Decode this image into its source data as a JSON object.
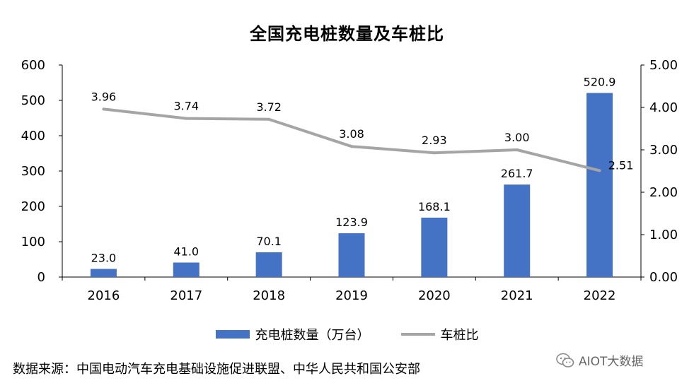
{
  "chart_data": {
    "type": "bar",
    "title": "全国充电桩数量及车桩比",
    "categories": [
      "2016",
      "2017",
      "2018",
      "2019",
      "2020",
      "2021",
      "2022"
    ],
    "series": [
      {
        "name": "充电桩数量（万台）",
        "type": "bar",
        "axis": "left",
        "values": [
          23.0,
          41.0,
          70.1,
          123.9,
          168.1,
          261.7,
          520.9
        ],
        "labels": [
          "23.0",
          "41.0",
          "70.1",
          "123.9",
          "168.1",
          "261.7",
          "520.9"
        ],
        "color": "#4472c4"
      },
      {
        "name": "车桩比",
        "type": "line",
        "axis": "right",
        "values": [
          3.96,
          3.74,
          3.72,
          3.08,
          2.93,
          3.0,
          2.51
        ],
        "labels": [
          "3.96",
          "3.74",
          "3.72",
          "3.08",
          "2.93",
          "3.00",
          "2.51"
        ],
        "color": "#a5a5a5"
      }
    ],
    "ylim": [
      0,
      600
    ],
    "yticks": [
      "0",
      "100",
      "200",
      "300",
      "400",
      "500",
      "600"
    ],
    "y2lim": [
      0,
      5
    ],
    "y2ticks": [
      "0.00",
      "1.00",
      "2.00",
      "3.00",
      "4.00",
      "5.00"
    ],
    "legend_position": "bottom",
    "grid": false
  },
  "source_text": "数据来源：中国电动汽车充电基础设施促进联盟、中华人民共和国公安部",
  "watermark_text": "AIOT大数据"
}
